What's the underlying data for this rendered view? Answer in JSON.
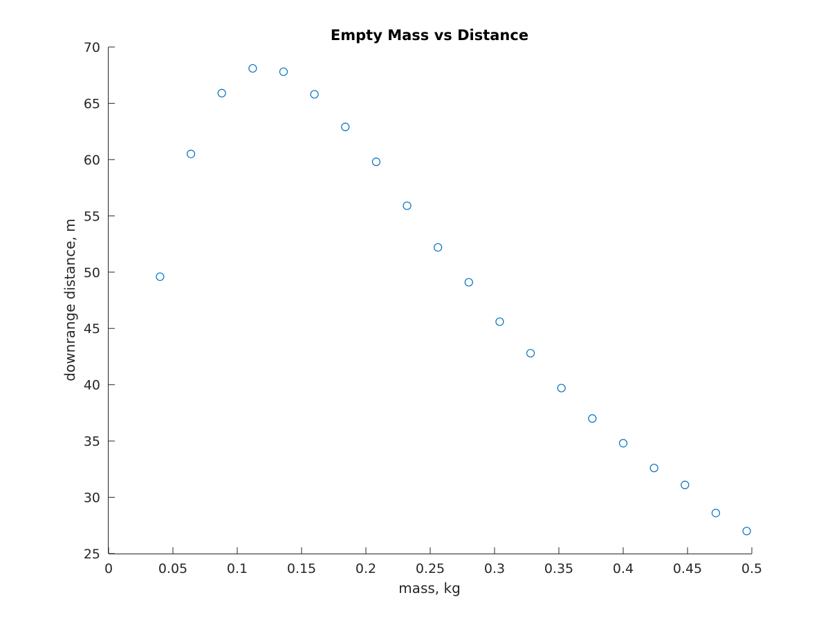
{
  "chart_data": {
    "type": "scatter",
    "title": "Empty Mass vs Distance",
    "xlabel": "mass, kg",
    "ylabel": "downrange distance, m",
    "xlim": [
      0,
      0.5
    ],
    "ylim": [
      25,
      70
    ],
    "xticks": [
      0,
      0.05,
      0.1,
      0.15,
      0.2,
      0.25,
      0.3,
      0.35,
      0.4,
      0.45,
      0.5
    ],
    "xtick_labels": [
      "0",
      "0.05",
      "0.1",
      "0.15",
      "0.2",
      "0.25",
      "0.3",
      "0.35",
      "0.4",
      "0.45",
      "0.5"
    ],
    "yticks": [
      25,
      30,
      35,
      40,
      45,
      50,
      55,
      60,
      65,
      70
    ],
    "ytick_labels": [
      "25",
      "30",
      "35",
      "40",
      "45",
      "50",
      "55",
      "60",
      "65",
      "70"
    ],
    "grid": false,
    "marker": "open-circle",
    "series": [
      {
        "color": "#0072BD",
        "x": [
          0.04,
          0.064,
          0.088,
          0.112,
          0.136,
          0.16,
          0.184,
          0.208,
          0.232,
          0.256,
          0.28,
          0.304,
          0.328,
          0.352,
          0.376,
          0.4,
          0.424,
          0.448,
          0.472,
          0.496
        ],
        "y": [
          49.6,
          60.5,
          65.9,
          68.1,
          67.8,
          65.8,
          62.9,
          59.8,
          55.9,
          52.2,
          49.1,
          45.6,
          42.8,
          39.7,
          37.0,
          34.8,
          32.6,
          31.1,
          28.6,
          27.0
        ]
      }
    ]
  }
}
